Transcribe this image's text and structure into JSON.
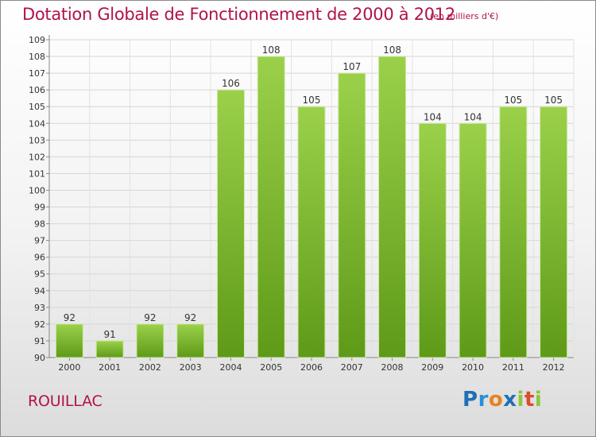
{
  "header": {
    "title": "Dotation Globale de Fonctionnement de 2000 à 2012",
    "unit": "(en milliers d'€)"
  },
  "footer": {
    "commune": "ROUILLAC",
    "logo": "Proxiti"
  },
  "chart_data": {
    "type": "bar",
    "title": "Dotation Globale de Fonctionnement de 2000 à 2012",
    "subtitle": "(en milliers d'€)",
    "categories": [
      "2000",
      "2001",
      "2002",
      "2003",
      "2004",
      "2005",
      "2006",
      "2007",
      "2008",
      "2009",
      "2010",
      "2011",
      "2012"
    ],
    "values": [
      92,
      91,
      92,
      92,
      106,
      108,
      105,
      107,
      108,
      104,
      104,
      105,
      105
    ],
    "ylim": [
      90,
      109
    ],
    "yticks": [
      90,
      91,
      92,
      93,
      94,
      95,
      96,
      97,
      98,
      99,
      100,
      101,
      102,
      103,
      104,
      105,
      106,
      107,
      108,
      109
    ],
    "grid": true,
    "bar_color": "#8cc63f",
    "bar_color_dark": "#5e9a18"
  }
}
